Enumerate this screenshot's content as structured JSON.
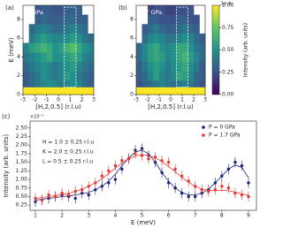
{
  "chart_data": [
    {
      "type": "heatmap",
      "panel_label": "(a)",
      "annotation": "0 GPa",
      "xlabel": "[H,2,0.5] (r.l.u)",
      "ylabel": "E (meV)",
      "xlim": [
        -3,
        3
      ],
      "ylim": [
        0,
        9.5
      ],
      "xticks": [
        -3,
        -2,
        -1,
        0,
        1,
        2,
        3
      ],
      "yticks": [
        0,
        2,
        4,
        6,
        8
      ],
      "colormap": "viridis",
      "clim": [
        0,
        1
      ],
      "highlight_box": {
        "xlim": [
          0.5,
          1.5
        ],
        "ylim": [
          0.8,
          9.3
        ]
      },
      "x_edges": [
        -3,
        -2.5,
        -2,
        -1.5,
        -1,
        -0.5,
        0,
        0.5,
        1,
        1.5,
        2,
        2.5,
        3
      ],
      "y_edges": [
        0,
        0.8,
        1.5,
        2.5,
        3.5,
        4.5,
        5.5,
        6.5,
        7.5,
        8.5,
        9.5
      ],
      "z": [
        [
          1,
          1,
          1,
          1,
          1,
          1,
          1,
          1,
          1,
          1,
          1,
          1
        ],
        [
          0.3,
          0.35,
          0.4,
          0.45,
          0.5,
          0.45,
          0.4,
          0.45,
          0.5,
          0.45,
          0.35,
          0.3
        ],
        [
          0.3,
          0.35,
          0.4,
          0.5,
          0.45,
          0.4,
          0.45,
          0.55,
          0.5,
          0.4,
          0.35,
          0.3
        ],
        [
          0.35,
          0.4,
          0.45,
          0.5,
          0.45,
          0.4,
          0.45,
          0.5,
          0.55,
          0.45,
          0.4,
          0.35
        ],
        [
          0.4,
          0.45,
          0.5,
          0.55,
          0.6,
          0.5,
          0.5,
          0.55,
          0.6,
          0.55,
          0.45,
          0.4
        ],
        [
          0.45,
          0.55,
          0.6,
          0.65,
          0.6,
          0.5,
          0.55,
          0.65,
          0.7,
          0.6,
          0.5,
          0.45
        ],
        [
          null,
          0.4,
          0.5,
          0.55,
          0.5,
          0.45,
          0.45,
          0.5,
          0.55,
          0.5,
          0.4,
          0.35
        ],
        [
          null,
          0.35,
          0.4,
          0.45,
          0.4,
          0.35,
          0.35,
          0.4,
          0.45,
          0.4,
          0.35,
          null
        ],
        [
          null,
          null,
          0.3,
          0.35,
          0.3,
          0.3,
          0.3,
          0.35,
          0.35,
          0.3,
          0.3,
          null
        ],
        [
          null,
          null,
          0.25,
          0.3,
          0.3,
          0.25,
          0.25,
          0.3,
          0.3,
          0.3,
          null,
          null
        ]
      ]
    },
    {
      "type": "heatmap",
      "panel_label": "(b)",
      "annotation": "1.7 GPa",
      "xlabel": "[H,2,0.5] (r.l.u)",
      "xlim": [
        -3,
        3
      ],
      "ylim": [
        0,
        9.5
      ],
      "xticks": [
        -3,
        -2,
        -1,
        0,
        1,
        2,
        3
      ],
      "yticks": [
        0,
        2,
        4,
        6,
        8
      ],
      "colormap": "viridis",
      "clim": [
        0,
        1
      ],
      "highlight_box": {
        "xlim": [
          0.5,
          1.5
        ],
        "ylim": [
          0.8,
          9.3
        ]
      },
      "x_edges": [
        -3,
        -2.5,
        -2,
        -1.5,
        -1,
        -0.5,
        0,
        0.5,
        1,
        1.5,
        2,
        2.5,
        3
      ],
      "y_edges": [
        0,
        0.8,
        1.5,
        2.5,
        3.5,
        4.5,
        5.5,
        6.5,
        7.5,
        8.5,
        9.5
      ],
      "z": [
        [
          1,
          1,
          1,
          1,
          1,
          1,
          1,
          1,
          1,
          1,
          1,
          1
        ],
        [
          0.25,
          0.3,
          0.35,
          0.4,
          0.45,
          0.4,
          0.35,
          0.4,
          0.45,
          0.4,
          0.3,
          0.25
        ],
        [
          0.3,
          0.35,
          0.45,
          0.55,
          0.45,
          0.4,
          0.45,
          0.6,
          0.55,
          0.45,
          0.35,
          0.3
        ],
        [
          0.3,
          0.4,
          0.5,
          0.55,
          0.5,
          0.4,
          0.5,
          0.55,
          0.6,
          0.5,
          0.4,
          0.3
        ],
        [
          0.35,
          0.45,
          0.55,
          0.6,
          0.55,
          0.45,
          0.5,
          0.6,
          0.65,
          0.55,
          0.45,
          0.35
        ],
        [
          0.35,
          0.45,
          0.55,
          0.6,
          0.5,
          0.45,
          0.5,
          0.6,
          0.6,
          0.5,
          0.4,
          0.35
        ],
        [
          null,
          0.35,
          0.45,
          0.5,
          0.45,
          0.4,
          0.4,
          0.45,
          0.5,
          0.45,
          0.35,
          0.3
        ],
        [
          null,
          0.3,
          0.35,
          0.4,
          0.35,
          0.3,
          0.3,
          0.35,
          0.4,
          0.35,
          0.3,
          null
        ],
        [
          null,
          null,
          0.3,
          0.3,
          0.25,
          0.25,
          0.25,
          0.3,
          0.3,
          0.25,
          0.25,
          null
        ],
        [
          null,
          null,
          0.2,
          0.25,
          0.25,
          0.2,
          0.2,
          0.25,
          0.25,
          0.25,
          null,
          null
        ]
      ],
      "colorbar": {
        "label": "Intensity (arb. units)",
        "multiplier": "1e-4",
        "lim": [
          0,
          1
        ],
        "ticks": [
          {
            "value": 0,
            "label": "0.00"
          },
          {
            "value": 0.25,
            "label": "0.25"
          },
          {
            "value": 0.5,
            "label": "0.50"
          },
          {
            "value": 0.75,
            "label": "0.75"
          },
          {
            "value": 1,
            "label": "1.00"
          }
        ]
      }
    },
    {
      "type": "scatter",
      "panel_label": "(c)",
      "xlabel": "E (meV)",
      "ylabel": "Intensity (arb. units)",
      "multiplier": "×10⁻⁵",
      "annotations": [
        "H = 1.0 ± 0.25 r.l.u",
        "K = 2.0 ± 0.25 r.l.u",
        "L = 0.5 ± 0.25 r.l.u"
      ],
      "xlim": [
        0.8,
        9.3
      ],
      "ylim": [
        0.1,
        2.7
      ],
      "xticks": [
        1,
        2,
        3,
        4,
        5,
        6,
        7,
        8,
        9
      ],
      "yticks": [
        {
          "value": 0.25,
          "label": "0.25"
        },
        {
          "value": 0.5,
          "label": "0.50"
        },
        {
          "value": 0.75,
          "label": "0.75"
        },
        {
          "value": 1,
          "label": "1.00"
        },
        {
          "value": 1.25,
          "label": "1.25"
        },
        {
          "value": 1.5,
          "label": "1.50"
        },
        {
          "value": 1.75,
          "label": "1.75"
        },
        {
          "value": 2,
          "label": "2.00"
        },
        {
          "value": 2.25,
          "label": "2.25"
        },
        {
          "value": 2.5,
          "label": "2.50"
        }
      ],
      "legend": "upper right",
      "x": [
        1,
        1.25,
        1.5,
        1.75,
        2,
        2.25,
        2.5,
        2.75,
        3,
        3.25,
        3.5,
        3.75,
        4,
        4.25,
        4.5,
        4.75,
        5,
        5.25,
        5.5,
        5.75,
        6,
        6.25,
        6.5,
        6.75,
        7,
        7.25,
        7.5,
        7.75,
        8,
        8.25,
        8.5,
        8.75,
        9
      ],
      "series": [
        {
          "name": "P = 0 GPa",
          "color": "#1a237e",
          "error": 0.15,
          "values": [
            0.35,
            0.4,
            0.45,
            0.5,
            0.55,
            0.5,
            0.45,
            0.6,
            0.55,
            0.7,
            0.8,
            0.9,
            1,
            1.3,
            1.6,
            1.85,
            1.9,
            1.7,
            1.5,
            1.2,
            0.9,
            0.75,
            0.6,
            0.5,
            0.5,
            0.6,
            0.7,
            0.9,
            1.1,
            1.3,
            1.5,
            1.4,
            0.9
          ],
          "fit": [
            0.4,
            0.42,
            0.45,
            0.47,
            0.5,
            0.52,
            0.55,
            0.58,
            0.62,
            0.7,
            0.8,
            0.95,
            1.15,
            1.4,
            1.62,
            1.8,
            1.85,
            1.75,
            1.5,
            1.2,
            0.95,
            0.75,
            0.62,
            0.55,
            0.55,
            0.6,
            0.72,
            0.9,
            1.1,
            1.3,
            1.42,
            1.35,
            1.05
          ]
        },
        {
          "name": "P = 1.7 GPa",
          "color": "#e53935",
          "error": 0.15,
          "values": [
            0.45,
            0.4,
            0.55,
            0.5,
            0.6,
            0.55,
            0.65,
            0.7,
            0.8,
            0.9,
            1.1,
            1.25,
            1.4,
            1.55,
            1.6,
            1.75,
            1.7,
            1.6,
            1.65,
            1.55,
            1.5,
            1.3,
            1.1,
            0.95,
            0.8,
            0.7,
            0.65,
            0.7,
            0.8,
            0.75,
            0.6,
            0.55,
            0.5
          ],
          "fit": [
            0.45,
            0.47,
            0.5,
            0.53,
            0.56,
            0.6,
            0.65,
            0.72,
            0.8,
            0.9,
            1.02,
            1.17,
            1.33,
            1.48,
            1.6,
            1.68,
            1.72,
            1.7,
            1.63,
            1.52,
            1.38,
            1.22,
            1.06,
            0.92,
            0.8,
            0.72,
            0.68,
            0.67,
            0.68,
            0.67,
            0.63,
            0.58,
            0.54
          ]
        }
      ]
    }
  ]
}
